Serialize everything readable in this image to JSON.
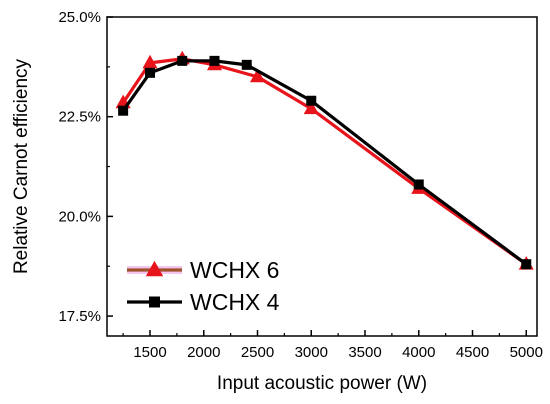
{
  "chart_data": {
    "type": "line",
    "title": "",
    "xlabel": "Input acoustic power (W)",
    "ylabel": "Relative Carnot efficiency",
    "xlim": [
      1100,
      5100
    ],
    "ylim": [
      17.0,
      25.0
    ],
    "x_ticks": [
      1500,
      2000,
      2500,
      3000,
      3500,
      4000,
      4500,
      5000
    ],
    "x_tick_labels": [
      "1500",
      "2000",
      "2500",
      "3000",
      "3500",
      "4000",
      "4500",
      "5000"
    ],
    "y_ticks": [
      17.5,
      20.0,
      22.5,
      25.0
    ],
    "y_tick_labels": [
      "17.5%",
      "20.0%",
      "22.5%",
      "25.0%"
    ],
    "y_unit": "%",
    "grid": false,
    "legend_position": "bottom-left",
    "series": [
      {
        "name": "WCHX 6",
        "marker": "triangle",
        "color": "#e8141b",
        "legend_line_color": "#a0522d",
        "x": [
          1250,
          1500,
          1800,
          2100,
          2500,
          3000,
          4000,
          5000
        ],
        "values": [
          22.85,
          23.85,
          23.95,
          23.8,
          23.5,
          22.7,
          20.7,
          18.8
        ]
      },
      {
        "name": "WCHX 4",
        "marker": "square",
        "color": "#000000",
        "x": [
          1250,
          1500,
          1800,
          2100,
          2400,
          3000,
          4000,
          5000
        ],
        "values": [
          22.65,
          23.6,
          23.9,
          23.9,
          23.8,
          22.9,
          20.8,
          18.8
        ]
      }
    ]
  }
}
